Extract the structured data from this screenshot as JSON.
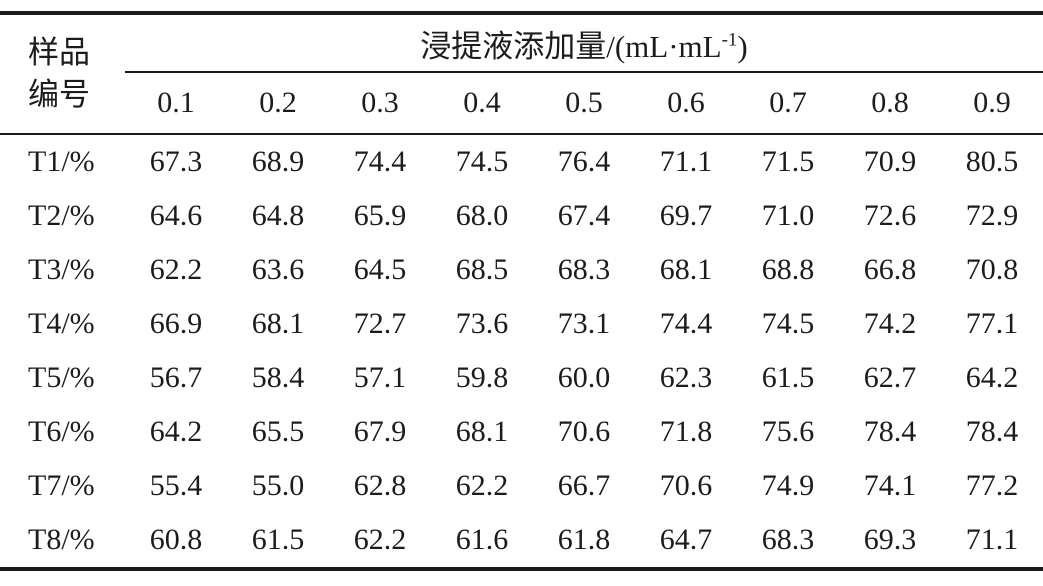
{
  "colors": {
    "background": "#ffffff",
    "text": "#1c1c1c",
    "rule": "#1a1a1a"
  },
  "table": {
    "corner_header": {
      "line1": "样品",
      "line2": "编号"
    },
    "span_header": {
      "prefix": "浸提液添加量/(mL·mL",
      "superscript": "-1",
      "suffix": ")"
    },
    "concentrations": [
      "0.1",
      "0.2",
      "0.3",
      "0.4",
      "0.5",
      "0.6",
      "0.7",
      "0.8",
      "0.9"
    ],
    "rows": [
      {
        "label": "T1/%",
        "values": [
          "67.3",
          "68.9",
          "74.4",
          "74.5",
          "76.4",
          "71.1",
          "71.5",
          "70.9",
          "80.5"
        ]
      },
      {
        "label": "T2/%",
        "values": [
          "64.6",
          "64.8",
          "65.9",
          "68.0",
          "67.4",
          "69.7",
          "71.0",
          "72.6",
          "72.9"
        ]
      },
      {
        "label": "T3/%",
        "values": [
          "62.2",
          "63.6",
          "64.5",
          "68.5",
          "68.3",
          "68.1",
          "68.8",
          "66.8",
          "70.8"
        ]
      },
      {
        "label": "T4/%",
        "values": [
          "66.9",
          "68.1",
          "72.7",
          "73.6",
          "73.1",
          "74.4",
          "74.5",
          "74.2",
          "77.1"
        ]
      },
      {
        "label": "T5/%",
        "values": [
          "56.7",
          "58.4",
          "57.1",
          "59.8",
          "60.0",
          "62.3",
          "61.5",
          "62.7",
          "64.2"
        ]
      },
      {
        "label": "T6/%",
        "values": [
          "64.2",
          "65.5",
          "67.9",
          "68.1",
          "70.6",
          "71.8",
          "75.6",
          "78.4",
          "78.4"
        ]
      },
      {
        "label": "T7/%",
        "values": [
          "55.4",
          "55.0",
          "62.8",
          "62.2",
          "66.7",
          "70.6",
          "74.9",
          "74.1",
          "77.2"
        ]
      },
      {
        "label": "T8/%",
        "values": [
          "60.8",
          "61.5",
          "62.2",
          "61.6",
          "61.8",
          "64.7",
          "68.3",
          "69.3",
          "71.1"
        ]
      }
    ]
  }
}
